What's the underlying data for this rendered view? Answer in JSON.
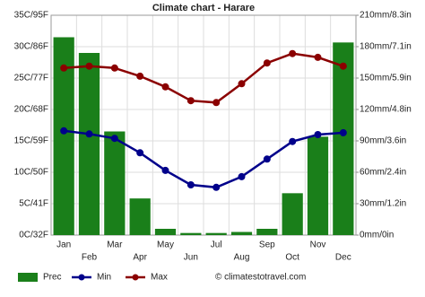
{
  "chart_data": {
    "type": "bar_line",
    "title": "Climate chart - Harare",
    "categories": [
      "Jan",
      "Feb",
      "Mar",
      "Apr",
      "May",
      "Jun",
      "Jul",
      "Aug",
      "Sep",
      "Oct",
      "Nov",
      "Dec"
    ],
    "series": [
      {
        "name": "Prec",
        "type": "bar",
        "axis": "y2",
        "color": "#1a7f1a",
        "values": [
          189,
          174,
          99,
          35,
          6,
          2,
          2,
          3,
          6,
          40,
          94,
          184
        ]
      },
      {
        "name": "Min",
        "type": "line",
        "color": "#00008b",
        "values": [
          16.6,
          16.1,
          15.4,
          13.1,
          10.3,
          8.0,
          7.6,
          9.3,
          12.1,
          14.9,
          16.0,
          16.3
        ]
      },
      {
        "name": "Max",
        "type": "line",
        "color": "#8b0000",
        "values": [
          26.6,
          26.9,
          26.6,
          25.3,
          23.6,
          21.4,
          21.1,
          24.1,
          27.4,
          28.9,
          28.3,
          26.9
        ]
      }
    ],
    "ylim": [
      0,
      35
    ],
    "yticks": [
      {
        "value": 0,
        "label": "0C/32F"
      },
      {
        "value": 5,
        "label": "5C/41F"
      },
      {
        "value": 10,
        "label": "10C/50F"
      },
      {
        "value": 15,
        "label": "15C/59F"
      },
      {
        "value": 20,
        "label": "20C/68F"
      },
      {
        "value": 25,
        "label": "25C/77F"
      },
      {
        "value": 30,
        "label": "30C/86F"
      },
      {
        "value": 35,
        "label": "35C/95F"
      }
    ],
    "y2lim": [
      0,
      210
    ],
    "y2ticks": [
      {
        "value": 0,
        "label": "0mm/0in"
      },
      {
        "value": 30,
        "label": "30mm/1.2in"
      },
      {
        "value": 60,
        "label": "60mm/2.4in"
      },
      {
        "value": 90,
        "label": "90mm/3.6in"
      },
      {
        "value": 120,
        "label": "120mm/4.8in"
      },
      {
        "value": 150,
        "label": "150mm/5.9in"
      },
      {
        "value": 180,
        "label": "180mm/7.1in"
      },
      {
        "value": 210,
        "label": "210mm/8.3in"
      }
    ],
    "grid": true,
    "legend": "bottom",
    "source": "© climatestotravel.com"
  }
}
